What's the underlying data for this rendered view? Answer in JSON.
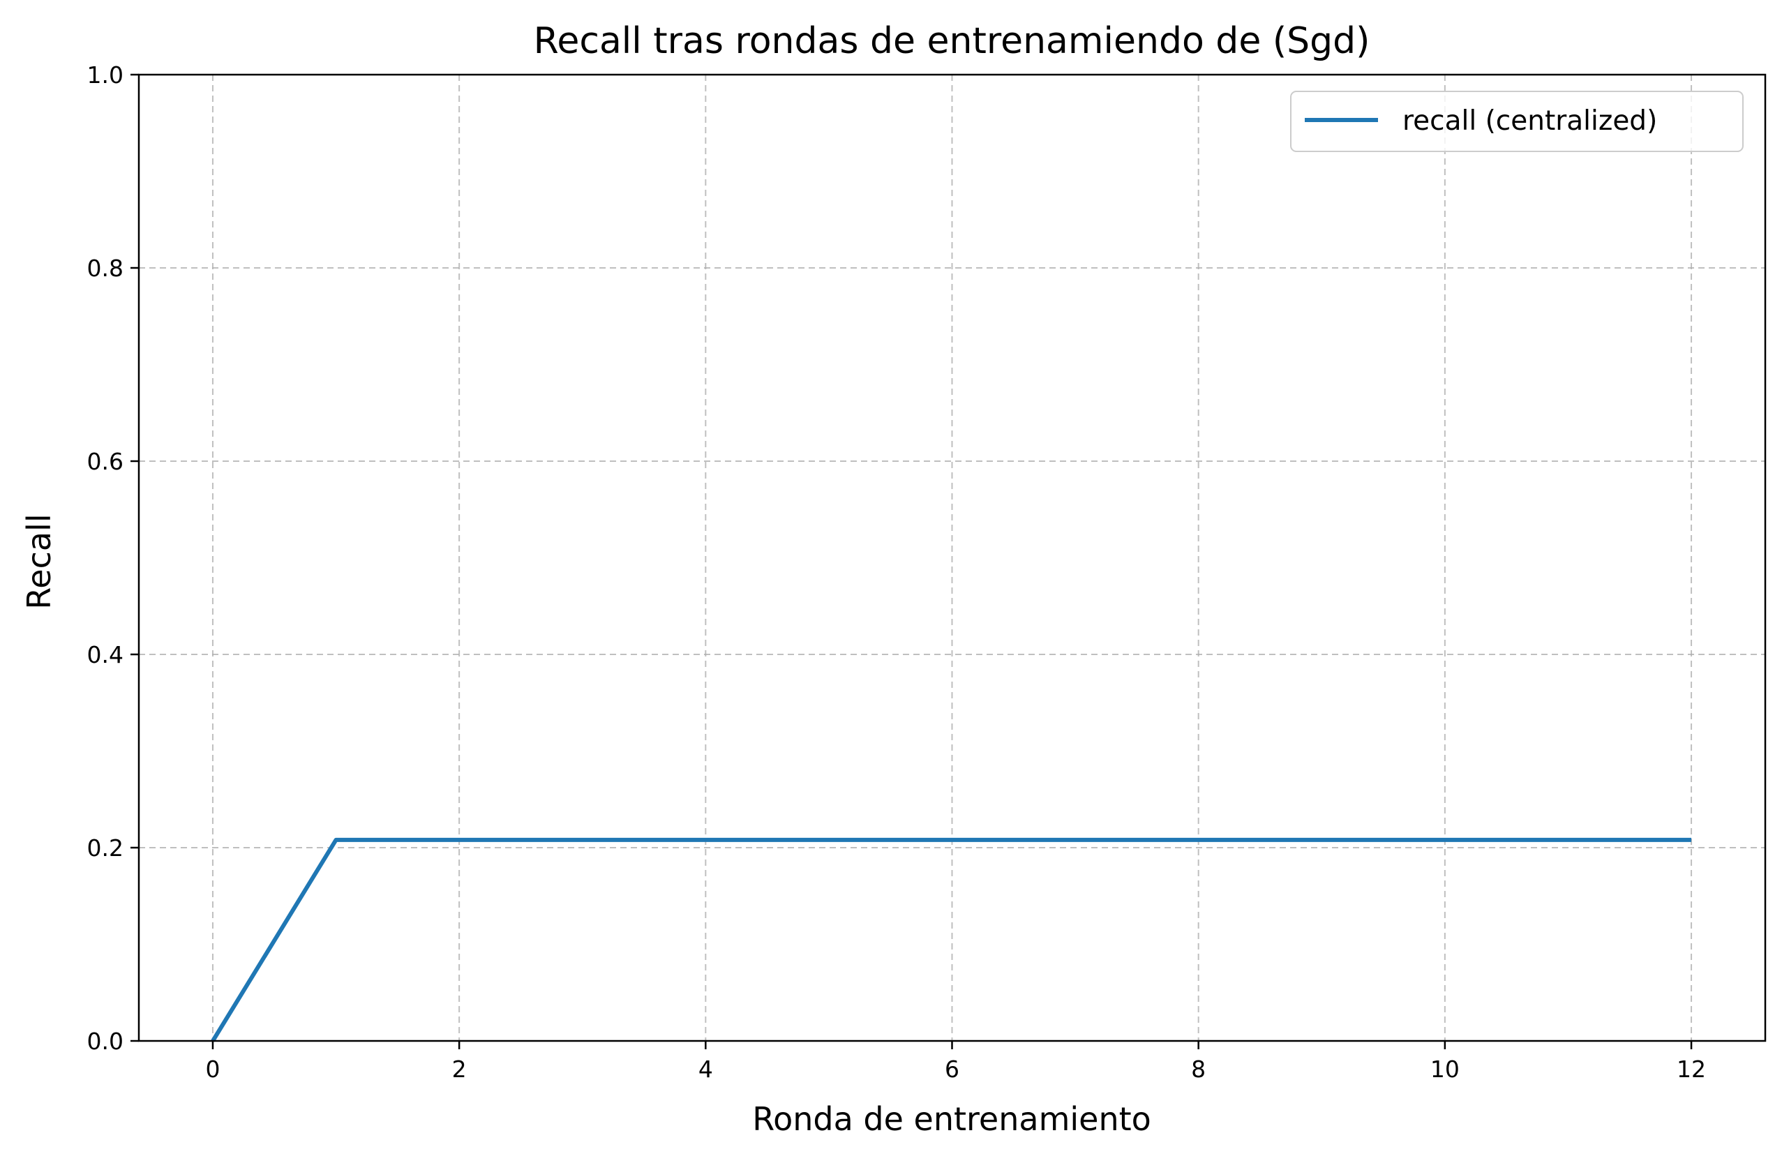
{
  "chart_data": {
    "type": "line",
    "title": "Recall tras rondas de entrenamiendo de (Sgd)",
    "xlabel": "Ronda de entrenamiento",
    "ylabel": "Recall",
    "xlim": [
      -0.6,
      12.6
    ],
    "ylim": [
      0.0,
      1.0
    ],
    "xticks": [
      0,
      2,
      4,
      6,
      8,
      10,
      12
    ],
    "xtick_labels": [
      "0",
      "2",
      "4",
      "6",
      "8",
      "10",
      "12"
    ],
    "yticks": [
      0.0,
      0.2,
      0.4,
      0.6,
      0.8,
      1.0
    ],
    "ytick_labels": [
      "0.0",
      "0.2",
      "0.4",
      "0.6",
      "0.8",
      "1.0"
    ],
    "grid": true,
    "legend_position": "top-right",
    "series": [
      {
        "name": "recall (centralized)",
        "color": "#1f77b4",
        "x": [
          0,
          1,
          2,
          3,
          4,
          5,
          6,
          7,
          8,
          9,
          10,
          11,
          12
        ],
        "y": [
          0.0,
          0.208,
          0.208,
          0.208,
          0.208,
          0.208,
          0.208,
          0.208,
          0.208,
          0.208,
          0.208,
          0.208,
          0.208
        ]
      }
    ]
  }
}
